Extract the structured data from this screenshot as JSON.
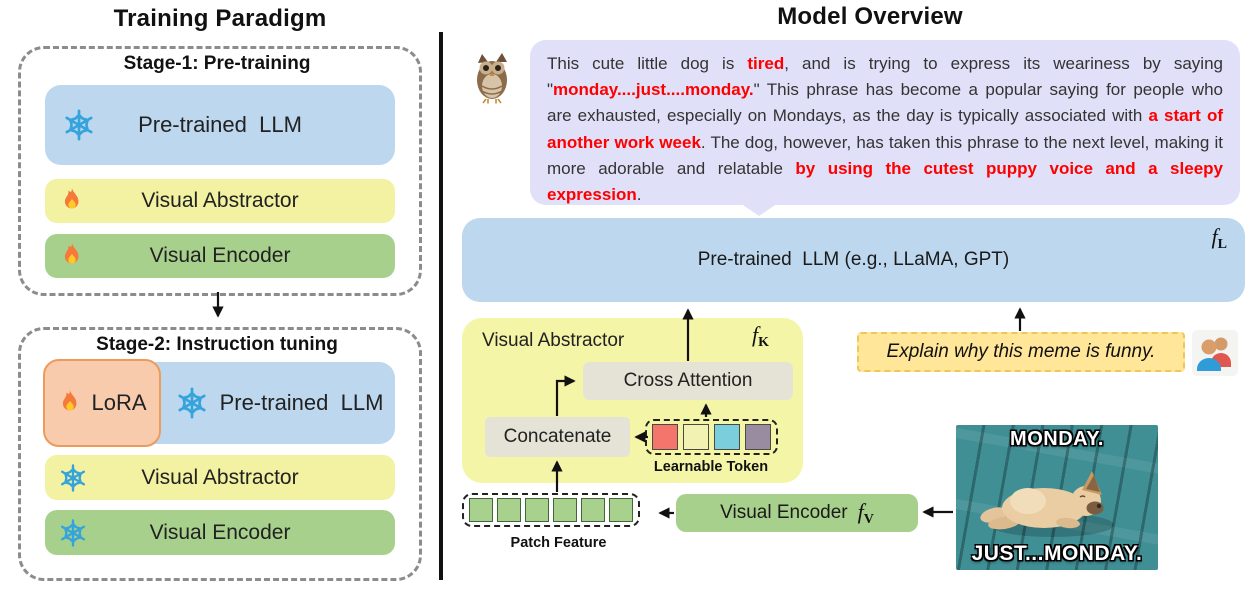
{
  "left": {
    "title": "Training Paradigm",
    "stage1": {
      "label": "Stage-1: Pre-training",
      "rows": [
        {
          "label": "Pre-trained  LLM",
          "icon": "snowflake-icon",
          "color": "#BDD7EE"
        },
        {
          "label": "Visual Abstractor",
          "icon": "fire-icon",
          "color": "#F2F2A2"
        },
        {
          "label": "Visual Encoder",
          "icon": "fire-icon",
          "color": "#A8D08D"
        }
      ]
    },
    "stage2": {
      "label": "Stage-2: Instruction tuning",
      "lora": {
        "label": "LoRA",
        "icon": "fire-icon",
        "fill": "#F8CBAD",
        "border": "#EC9B5C"
      },
      "rows": [
        {
          "label": "Pre-trained  LLM",
          "icon": "snowflake-icon",
          "color": "#BDD7EE"
        },
        {
          "label": "Visual Abstractor",
          "icon": "snowflake-icon",
          "color": "#F2F2A2"
        },
        {
          "label": "Visual Encoder",
          "icon": "snowflake-icon",
          "color": "#A8D08D"
        }
      ]
    }
  },
  "right": {
    "title": "Model Overview",
    "bubble": {
      "speaker_icon": "owl-icon",
      "segments": [
        {
          "t": "This cute little dog is ",
          "red": false
        },
        {
          "t": "tired",
          "red": true
        },
        {
          "t": ", and is trying to express its weariness by saying \"",
          "red": false
        },
        {
          "t": "monday....just....monday.",
          "red": true
        },
        {
          "t": "\" This phrase has become a popular saying for people who are exhausted, especially on Mondays, as the day is typically associated with ",
          "red": false
        },
        {
          "t": "a start of another work week",
          "red": true
        },
        {
          "t": ". The dog, however, has taken this phrase to the next level, making it more adorable and relatable ",
          "red": false
        },
        {
          "t": "by using the cutest puppy voice and a sleepy expression",
          "red": true
        },
        {
          "t": ".",
          "red": false
        }
      ]
    },
    "llm": {
      "label": "Pre-trained  LLM (e.g., LLaMA, GPT)",
      "f_symbol": "f",
      "f_sub": "L"
    },
    "abstractor": {
      "label": "Visual Abstractor",
      "f_symbol": "f",
      "f_sub": "K",
      "cross_attention_label": "Cross Attention",
      "concatenate_label": "Concatenate",
      "learnable_token_label": "Learnable Token",
      "token_colors": [
        "#F4756B",
        "#F2F2B2",
        "#7BCFDC",
        "#9A8CA0"
      ]
    },
    "patch": {
      "label": "Patch Feature",
      "colors": [
        "#A9D18E",
        "#A9D18E",
        "#A9D18E",
        "#A9D18E",
        "#A9D18E",
        "#A9D18E"
      ]
    },
    "encoder": {
      "label": "Visual Encoder",
      "f_symbol": "f",
      "f_sub": "V"
    },
    "instruction": {
      "text": "Explain why this meme is funny.",
      "user_icon": "people-icon"
    },
    "meme": {
      "top_text": "MONDAY.",
      "bottom_text": "JUST...MONDAY."
    }
  },
  "colors": {
    "llm_blue": "#BDD7EE",
    "abstractor_yellow_small": "#F2F2A2",
    "abstractor_yellow_big": "#F5F5A8",
    "encoder_green": "#A8D08D",
    "lora_fill": "#F8CBAD",
    "lora_border": "#EC9B5C",
    "op_box_gray": "#E4E3D6",
    "bubble_lavender": "#E0E0F8",
    "instruction_yellow": "#FFE699",
    "highlight_red": "#FE0000",
    "snowflake_blue": "#35A3DC",
    "flame_orange": "#F4793B",
    "meme_teal": "#3F8F95"
  }
}
